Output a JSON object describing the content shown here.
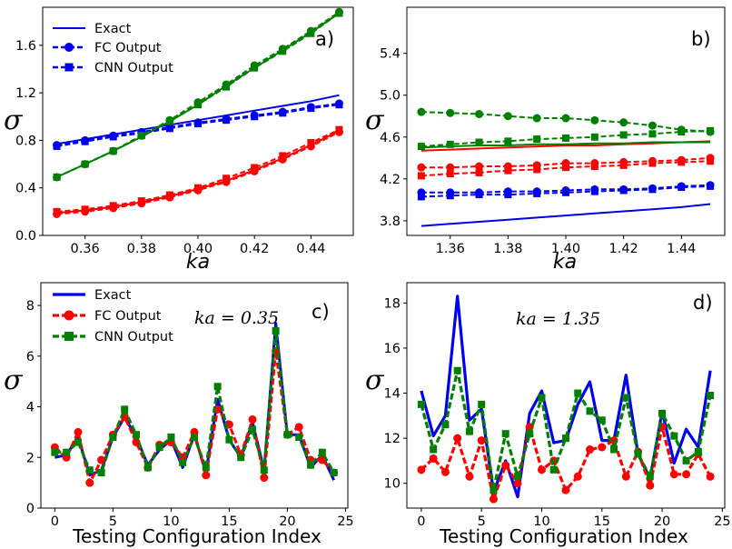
{
  "chart_data": [
    {
      "type": "line",
      "panel_label": "a)",
      "xlabel": "ka",
      "ylabel": "σ",
      "xlim": [
        0.345,
        0.455
      ],
      "ylim": [
        0.0,
        1.92
      ],
      "xticks": [
        0.36,
        0.38,
        0.4,
        0.42,
        0.44
      ],
      "xtick_labels": [
        "0.36",
        "0.38",
        "0.40",
        "0.42",
        "0.44"
      ],
      "yticks": [
        0.0,
        0.4,
        0.8,
        1.2,
        1.6
      ],
      "ytick_labels": [
        "0.0",
        "0.4",
        "0.8",
        "1.2",
        "1.6"
      ],
      "legend": {
        "position": "top-left",
        "entries": [
          "Exact",
          "FC Output",
          "CNN Output"
        ],
        "color": "#0000ee"
      },
      "x": [
        0.35,
        0.36,
        0.37,
        0.38,
        0.39,
        0.4,
        0.41,
        0.42,
        0.43,
        0.44,
        0.45
      ],
      "series": [
        {
          "name": "Exact",
          "color": "#0000ee",
          "style": "solid",
          "marker": "none",
          "values": [
            0.77,
            0.81,
            0.85,
            0.89,
            0.93,
            0.97,
            1.01,
            1.05,
            1.09,
            1.13,
            1.18
          ]
        },
        {
          "name": "FC Output",
          "color": "#0000ee",
          "style": "dashed",
          "marker": "circle",
          "values": [
            0.76,
            0.8,
            0.84,
            0.87,
            0.91,
            0.95,
            0.98,
            1.01,
            1.04,
            1.08,
            1.11
          ]
        },
        {
          "name": "CNN Output",
          "color": "#0000ee",
          "style": "dashed",
          "marker": "square",
          "values": [
            0.75,
            0.79,
            0.83,
            0.86,
            0.9,
            0.94,
            0.97,
            1.0,
            1.03,
            1.07,
            1.1
          ]
        },
        {
          "name": "Exact",
          "color": "#ff0000",
          "style": "solid",
          "marker": "none",
          "values": [
            0.19,
            0.21,
            0.24,
            0.28,
            0.33,
            0.39,
            0.46,
            0.55,
            0.65,
            0.76,
            0.88
          ]
        },
        {
          "name": "FC Output",
          "color": "#ff0000",
          "style": "dashed",
          "marker": "circle",
          "values": [
            0.18,
            0.2,
            0.23,
            0.27,
            0.32,
            0.38,
            0.45,
            0.54,
            0.64,
            0.75,
            0.87
          ]
        },
        {
          "name": "CNN Output",
          "color": "#ff0000",
          "style": "dashed",
          "marker": "square",
          "values": [
            0.2,
            0.22,
            0.25,
            0.29,
            0.34,
            0.4,
            0.48,
            0.57,
            0.67,
            0.78,
            0.89
          ]
        },
        {
          "name": "Exact",
          "color": "#008000",
          "style": "solid",
          "marker": "none",
          "values": [
            0.49,
            0.6,
            0.71,
            0.83,
            0.96,
            1.1,
            1.26,
            1.41,
            1.56,
            1.71,
            1.87
          ]
        },
        {
          "name": "FC Output",
          "color": "#008000",
          "style": "dashed",
          "marker": "circle",
          "values": [
            0.49,
            0.6,
            0.71,
            0.84,
            0.97,
            1.12,
            1.27,
            1.43,
            1.57,
            1.72,
            1.88
          ]
        },
        {
          "name": "CNN Output",
          "color": "#008000",
          "style": "dashed",
          "marker": "square",
          "values": [
            0.49,
            0.6,
            0.71,
            0.84,
            0.96,
            1.1,
            1.25,
            1.41,
            1.55,
            1.7,
            1.87
          ]
        }
      ]
    },
    {
      "type": "line",
      "panel_label": "b)",
      "xlabel": "ka",
      "ylabel": "σ",
      "xlim": [
        1.345,
        1.455
      ],
      "ylim": [
        3.66,
        5.84
      ],
      "xticks": [
        1.36,
        1.38,
        1.4,
        1.42,
        1.44
      ],
      "xtick_labels": [
        "1.36",
        "1.38",
        "1.40",
        "1.42",
        "1.44"
      ],
      "yticks": [
        3.8,
        4.2,
        4.6,
        5.0,
        5.4
      ],
      "ytick_labels": [
        "3.8",
        "4.2",
        "4.6",
        "5.0",
        "5.4"
      ],
      "x": [
        1.35,
        1.36,
        1.37,
        1.38,
        1.39,
        1.4,
        1.41,
        1.42,
        1.43,
        1.44,
        1.45
      ],
      "series": [
        {
          "name": "Exact",
          "color": "#0000ee",
          "style": "solid",
          "marker": "none",
          "values": [
            3.75,
            3.77,
            3.79,
            3.81,
            3.83,
            3.85,
            3.87,
            3.89,
            3.91,
            3.93,
            3.96
          ]
        },
        {
          "name": "FC Output",
          "color": "#0000ee",
          "style": "dashed",
          "marker": "circle",
          "values": [
            4.07,
            4.07,
            4.07,
            4.08,
            4.08,
            4.09,
            4.1,
            4.1,
            4.11,
            4.13,
            4.14
          ]
        },
        {
          "name": "CNN Output",
          "color": "#0000ee",
          "style": "dashed",
          "marker": "square",
          "values": [
            4.03,
            4.04,
            4.05,
            4.05,
            4.06,
            4.07,
            4.08,
            4.09,
            4.1,
            4.12,
            4.13
          ]
        },
        {
          "name": "Exact",
          "color": "#ff0000",
          "style": "solid",
          "marker": "none",
          "values": [
            4.47,
            4.48,
            4.49,
            4.5,
            4.51,
            4.52,
            4.52,
            4.53,
            4.54,
            4.55,
            4.56
          ]
        },
        {
          "name": "FC Output",
          "color": "#ff0000",
          "style": "dashed",
          "marker": "circle",
          "values": [
            4.31,
            4.31,
            4.32,
            4.32,
            4.33,
            4.35,
            4.35,
            4.36,
            4.37,
            4.38,
            4.4
          ]
        },
        {
          "name": "CNN Output",
          "color": "#ff0000",
          "style": "dashed",
          "marker": "square",
          "values": [
            4.23,
            4.25,
            4.26,
            4.28,
            4.29,
            4.31,
            4.32,
            4.33,
            4.35,
            4.36,
            4.37
          ]
        },
        {
          "name": "Exact",
          "color": "#008000",
          "style": "solid",
          "marker": "none",
          "values": [
            4.5,
            4.51,
            4.52,
            4.52,
            4.53,
            4.53,
            4.54,
            4.54,
            4.55,
            4.55,
            4.55
          ]
        },
        {
          "name": "FC Output",
          "color": "#008000",
          "style": "dashed",
          "marker": "circle",
          "values": [
            4.84,
            4.83,
            4.82,
            4.8,
            4.78,
            4.78,
            4.76,
            4.74,
            4.71,
            4.67,
            4.65
          ]
        },
        {
          "name": "CNN Output",
          "color": "#008000",
          "style": "dashed",
          "marker": "square",
          "values": [
            4.51,
            4.53,
            4.55,
            4.56,
            4.58,
            4.59,
            4.6,
            4.62,
            4.63,
            4.65,
            4.66
          ]
        }
      ]
    },
    {
      "type": "line",
      "panel_label": "c)",
      "annotation": "ka = 0.35",
      "xlabel": "Testing Configuration Index",
      "ylabel": "σ",
      "xlim": [
        -1.2,
        25.2
      ],
      "ylim": [
        0,
        8.9
      ],
      "xticks": [
        0,
        5,
        10,
        15,
        20,
        25
      ],
      "xtick_labels": [
        "0",
        "5",
        "10",
        "15",
        "20",
        "25"
      ],
      "yticks": [
        0,
        2,
        4,
        6,
        8
      ],
      "ytick_labels": [
        "0",
        "2",
        "4",
        "6",
        "8"
      ],
      "legend": {
        "position": "top-left",
        "entries": [
          "Exact",
          "FC Output",
          "CNN Output"
        ]
      },
      "x": [
        0,
        1,
        2,
        3,
        4,
        5,
        6,
        7,
        8,
        9,
        10,
        11,
        12,
        13,
        14,
        15,
        16,
        17,
        18,
        19,
        20,
        21,
        22,
        23,
        24
      ],
      "series": [
        {
          "name": "Exact",
          "color": "#0000ee",
          "style": "solid",
          "marker": "none",
          "values": [
            2.0,
            2.1,
            2.8,
            1.3,
            1.5,
            2.8,
            3.6,
            2.8,
            1.7,
            2.3,
            2.7,
            1.6,
            2.9,
            1.4,
            4.3,
            2.7,
            2.0,
            3.4,
            1.5,
            7.3,
            2.9,
            2.9,
            1.6,
            2.1,
            1.1
          ]
        },
        {
          "name": "FC Output",
          "color": "#ff0000",
          "style": "dashed",
          "marker": "circle",
          "values": [
            2.4,
            2.0,
            3.0,
            1.0,
            1.9,
            2.9,
            3.6,
            2.6,
            1.6,
            2.5,
            2.6,
            2.0,
            3.0,
            1.3,
            3.9,
            3.3,
            2.1,
            3.5,
            1.2,
            6.2,
            2.9,
            3.2,
            1.9,
            1.9,
            1.4
          ]
        },
        {
          "name": "CNN Output",
          "color": "#008000",
          "style": "dashed",
          "marker": "square",
          "values": [
            2.2,
            2.2,
            2.6,
            1.5,
            1.4,
            2.8,
            3.9,
            2.9,
            1.6,
            2.4,
            2.8,
            1.8,
            2.8,
            1.6,
            4.8,
            2.7,
            2.0,
            3.1,
            1.5,
            7.0,
            2.9,
            2.8,
            1.7,
            2.2,
            1.4
          ]
        }
      ]
    },
    {
      "type": "line",
      "panel_label": "d)",
      "annotation": "ka = 1.35",
      "xlabel": "Testing Configuration Index",
      "ylabel": "σ",
      "xlim": [
        -1.2,
        25.2
      ],
      "ylim": [
        8.9,
        18.9
      ],
      "xticks": [
        0,
        5,
        10,
        15,
        20,
        25
      ],
      "xtick_labels": [
        "0",
        "5",
        "10",
        "15",
        "20",
        "25"
      ],
      "yticks": [
        10,
        12,
        14,
        16,
        18
      ],
      "ytick_labels": [
        "10",
        "12",
        "14",
        "16",
        "18"
      ],
      "x": [
        0,
        1,
        2,
        3,
        4,
        5,
        6,
        7,
        8,
        9,
        10,
        11,
        12,
        13,
        14,
        15,
        16,
        17,
        18,
        19,
        20,
        21,
        22,
        23,
        24
      ],
      "series": [
        {
          "name": "Exact",
          "color": "#0000ee",
          "style": "solid",
          "marker": "none",
          "values": [
            14.1,
            12.1,
            13.0,
            18.3,
            12.8,
            13.3,
            9.6,
            11.0,
            9.4,
            13.1,
            14.1,
            11.8,
            11.9,
            13.5,
            14.5,
            11.9,
            11.9,
            14.8,
            11.3,
            10.2,
            13.2,
            10.9,
            12.4,
            11.6,
            15.0
          ]
        },
        {
          "name": "FC Output",
          "color": "#ff0000",
          "style": "dashed",
          "marker": "circle",
          "values": [
            10.6,
            11.1,
            10.5,
            12.0,
            10.3,
            11.9,
            9.3,
            10.8,
            10.0,
            12.5,
            10.6,
            11.0,
            9.7,
            10.3,
            11.5,
            11.6,
            11.9,
            10.3,
            11.4,
            9.9,
            12.5,
            10.4,
            10.4,
            11.3,
            10.3
          ]
        },
        {
          "name": "CNN Output",
          "color": "#008000",
          "style": "dashed",
          "marker": "square",
          "values": [
            13.5,
            11.5,
            12.6,
            15.0,
            12.3,
            13.5,
            9.7,
            12.2,
            10.3,
            12.2,
            13.8,
            10.6,
            12.0,
            14.0,
            13.2,
            12.8,
            11.5,
            13.8,
            11.3,
            10.3,
            13.1,
            12.1,
            11.0,
            11.4,
            13.9
          ]
        }
      ]
    }
  ]
}
